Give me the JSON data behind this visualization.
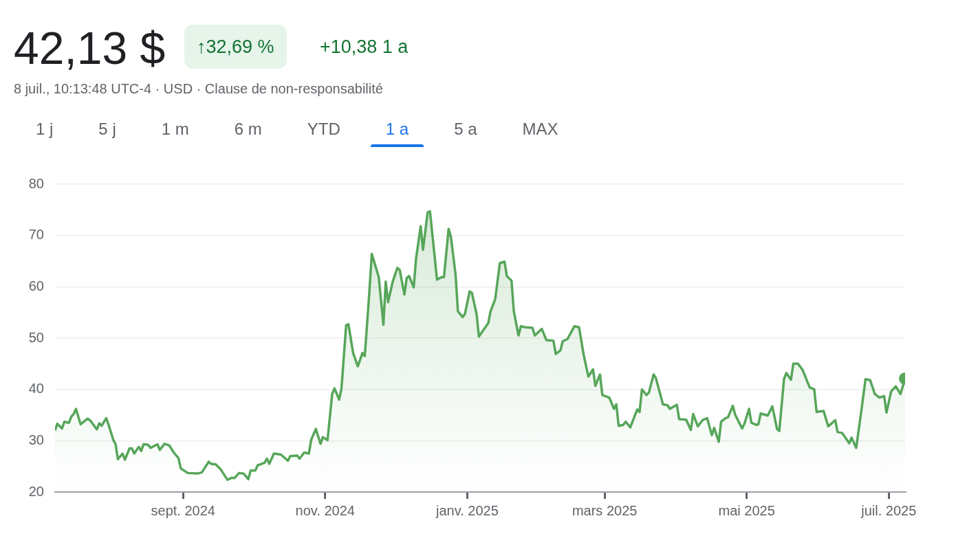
{
  "chart_data": {
    "type": "area",
    "title": "42,13 $",
    "subtitle": "8 juil., 10:13:48 UTC-4 · USD · Clause de non-responsabilité",
    "annotations": [
      "↑32,69 %",
      "+10,38 1 a",
      "1 j",
      "5 j",
      "1 m",
      "6 m",
      "YTD",
      "1 a",
      "5 a",
      "MAX"
    ],
    "x": [
      "2024-07-08",
      "2024-07-09",
      "2024-07-11",
      "2024-07-12",
      "2024-07-14",
      "2024-07-15",
      "2024-07-16",
      "2024-07-17",
      "2024-07-19",
      "2024-07-22",
      "2024-07-23",
      "2024-07-26",
      "2024-07-27",
      "2024-07-28",
      "2024-07-30",
      "2024-07-31",
      "2024-08-02",
      "2024-08-03",
      "2024-08-04",
      "2024-08-06",
      "2024-08-07",
      "2024-08-09",
      "2024-08-10",
      "2024-08-11",
      "2024-08-13",
      "2024-08-14",
      "2024-08-15",
      "2024-08-17",
      "2024-08-18",
      "2024-08-21",
      "2024-08-22",
      "2024-08-24",
      "2024-08-26",
      "2024-08-28",
      "2024-08-30",
      "2024-08-31",
      "2024-09-03",
      "2024-09-07",
      "2024-09-09",
      "2024-09-12",
      "2024-09-13",
      "2024-09-15",
      "2024-09-17",
      "2024-09-20",
      "2024-09-22",
      "2024-09-23",
      "2024-09-25",
      "2024-09-27",
      "2024-09-29",
      "2024-09-30",
      "2024-10-02",
      "2024-10-03",
      "2024-10-06",
      "2024-10-07",
      "2024-10-08",
      "2024-10-10",
      "2024-10-13",
      "2024-10-16",
      "2024-10-17",
      "2024-10-20",
      "2024-10-21",
      "2024-10-23",
      "2024-10-25",
      "2024-10-26",
      "2024-10-28",
      "2024-10-30",
      "2024-10-31",
      "2024-11-02",
      "2024-11-04",
      "2024-11-05",
      "2024-11-07",
      "2024-11-08",
      "2024-11-10",
      "2024-11-11",
      "2024-11-13",
      "2024-11-15",
      "2024-11-17",
      "2024-11-18",
      "2024-11-20",
      "2024-11-21",
      "2024-11-23",
      "2024-11-24",
      "2024-11-26",
      "2024-11-27",
      "2024-11-28",
      "2024-11-30",
      "2024-12-02",
      "2024-12-03",
      "2024-12-05",
      "2024-12-06",
      "2024-12-07",
      "2024-12-09",
      "2024-12-10",
      "2024-12-12",
      "2024-12-13",
      "2024-12-15",
      "2024-12-16",
      "2024-12-18",
      "2024-12-19",
      "2024-12-21",
      "2024-12-22",
      "2024-12-24",
      "2024-12-25",
      "2024-12-27",
      "2024-12-28",
      "2024-12-30",
      "2024-12-31",
      "2025-01-02",
      "2025-01-03",
      "2025-01-05",
      "2025-01-06",
      "2025-01-08",
      "2025-01-10",
      "2025-01-11",
      "2025-01-13",
      "2025-01-15",
      "2025-01-17",
      "2025-01-18",
      "2025-01-20",
      "2025-01-21",
      "2025-01-23",
      "2025-01-24",
      "2025-01-26",
      "2025-01-29",
      "2025-01-30",
      "2025-02-02",
      "2025-02-04",
      "2025-02-07",
      "2025-02-08",
      "2025-02-10",
      "2025-02-11",
      "2025-02-13",
      "2025-02-16",
      "2025-02-18",
      "2025-02-20",
      "2025-02-22",
      "2025-02-24",
      "2025-02-25",
      "2025-02-27",
      "2025-02-28",
      "2025-03-03",
      "2025-03-05",
      "2025-03-06",
      "2025-03-07",
      "2025-03-09",
      "2025-03-10",
      "2025-03-12",
      "2025-03-15",
      "2025-03-16",
      "2025-03-17",
      "2025-03-19",
      "2025-03-20",
      "2025-03-22",
      "2025-03-23",
      "2025-03-26",
      "2025-03-28",
      "2025-03-29",
      "2025-04-01",
      "2025-04-02",
      "2025-04-05",
      "2025-04-07",
      "2025-04-08",
      "2025-04-10",
      "2025-04-12",
      "2025-04-14",
      "2025-04-16",
      "2025-04-17",
      "2025-04-19",
      "2025-04-20",
      "2025-04-22",
      "2025-04-23",
      "2025-04-25",
      "2025-04-26",
      "2025-04-29",
      "2025-04-30",
      "2025-05-02",
      "2025-05-03",
      "2025-05-05",
      "2025-05-06",
      "2025-05-07",
      "2025-05-10",
      "2025-05-12",
      "2025-05-14",
      "2025-05-15",
      "2025-05-17",
      "2025-05-18",
      "2025-05-20",
      "2025-05-21",
      "2025-05-23",
      "2025-05-25",
      "2025-05-28",
      "2025-05-30",
      "2025-05-31",
      "2025-06-03",
      "2025-06-05",
      "2025-06-08",
      "2025-06-09",
      "2025-06-11",
      "2025-06-14",
      "2025-06-15",
      "2025-06-17",
      "2025-06-19",
      "2025-06-21",
      "2025-06-23",
      "2025-06-25",
      "2025-06-27",
      "2025-06-29",
      "2025-06-30",
      "2025-07-02",
      "2025-07-04",
      "2025-07-06",
      "2025-07-08"
    ],
    "series": [
      {
        "color": "#57a65a",
        "values": [
          32.0,
          33.3,
          32.4,
          33.7,
          33.5,
          34.7,
          35.2,
          36.2,
          33.2,
          34.3,
          34.0,
          32.2,
          33.4,
          32.9,
          34.4,
          33.1,
          30.2,
          29.3,
          26.4,
          27.5,
          26.3,
          28.5,
          28.5,
          27.5,
          28.8,
          28.0,
          29.3,
          29.2,
          28.6,
          29.3,
          28.2,
          29.4,
          29.1,
          27.7,
          26.6,
          24.6,
          23.7,
          23.6,
          23.8,
          25.9,
          25.5,
          25.4,
          24.5,
          22.4,
          22.8,
          22.7,
          23.7,
          23.6,
          22.5,
          24.2,
          24.2,
          25.2,
          25.7,
          26.5,
          25.5,
          27.5,
          27.3,
          26.1,
          27.0,
          27.1,
          26.5,
          27.7,
          27.5,
          30.2,
          32.3,
          29.4,
          30.7,
          30.1,
          39.1,
          40.2,
          38.0,
          40.2,
          52.5,
          52.7,
          47.1,
          44.5,
          47.1,
          46.5,
          59.2,
          66.4,
          63.4,
          61.9,
          52.6,
          61.0,
          57.0,
          61.0,
          63.7,
          63.3,
          58.5,
          61.7,
          62.1,
          59.9,
          65.4,
          71.8,
          67.2,
          74.5,
          74.7,
          65.9,
          61.4,
          61.9,
          61.9,
          71.3,
          69.7,
          62.3,
          55.2,
          54.1,
          54.7,
          59.1,
          58.8,
          54.7,
          50.3,
          51.6,
          52.9,
          55.2,
          57.6,
          64.6,
          64.9,
          62.1,
          61.2,
          55.2,
          50.5,
          52.3,
          52.1,
          52.0,
          50.5,
          51.8,
          49.6,
          49.5,
          46.9,
          47.6,
          49.4,
          49.8,
          52.3,
          52.1,
          46.7,
          42.5,
          43.9,
          40.7,
          42.9,
          38.9,
          38.4,
          36.2,
          37.1,
          32.9,
          33.1,
          33.7,
          32.6,
          36.1,
          35.6,
          40.0,
          38.9,
          39.4,
          42.9,
          42.2,
          37.1,
          36.9,
          36.2,
          37.0,
          34.2,
          34.1,
          32.1,
          35.2,
          32.8,
          34.0,
          34.4,
          31.1,
          32.5,
          29.8,
          33.7,
          34.4,
          34.6,
          36.8,
          35.1,
          32.4,
          33.3,
          36.2,
          33.5,
          33.1,
          33.2,
          35.3,
          34.9,
          36.7,
          32.3,
          31.9,
          42.0,
          43.2,
          41.9,
          45.0,
          45.0,
          43.8,
          40.4,
          40.0,
          35.6,
          35.8,
          32.8,
          34.0,
          31.7,
          31.5,
          29.5,
          30.6,
          28.6,
          35.1,
          42.0,
          41.8,
          39.1,
          38.4,
          38.7,
          35.5,
          39.6,
          40.6,
          39.1,
          42.1
        ]
      }
    ],
    "xlim": [
      "2024-07-08",
      "2025-07-08"
    ],
    "xticks": [
      {
        "value": "2024-09-01",
        "label": "sept. 2024"
      },
      {
        "value": "2024-11-01",
        "label": "nov. 2024"
      },
      {
        "value": "2025-01-01",
        "label": "janv. 2025"
      },
      {
        "value": "2025-03-01",
        "label": "mars 2025"
      },
      {
        "value": "2025-05-01",
        "label": "mai 2025"
      },
      {
        "value": "2025-07-01",
        "label": "juil. 2025"
      }
    ],
    "ylim": [
      20,
      80
    ],
    "yticks": [
      20,
      30,
      40,
      50,
      60,
      70,
      80
    ],
    "grid": "y"
  }
}
